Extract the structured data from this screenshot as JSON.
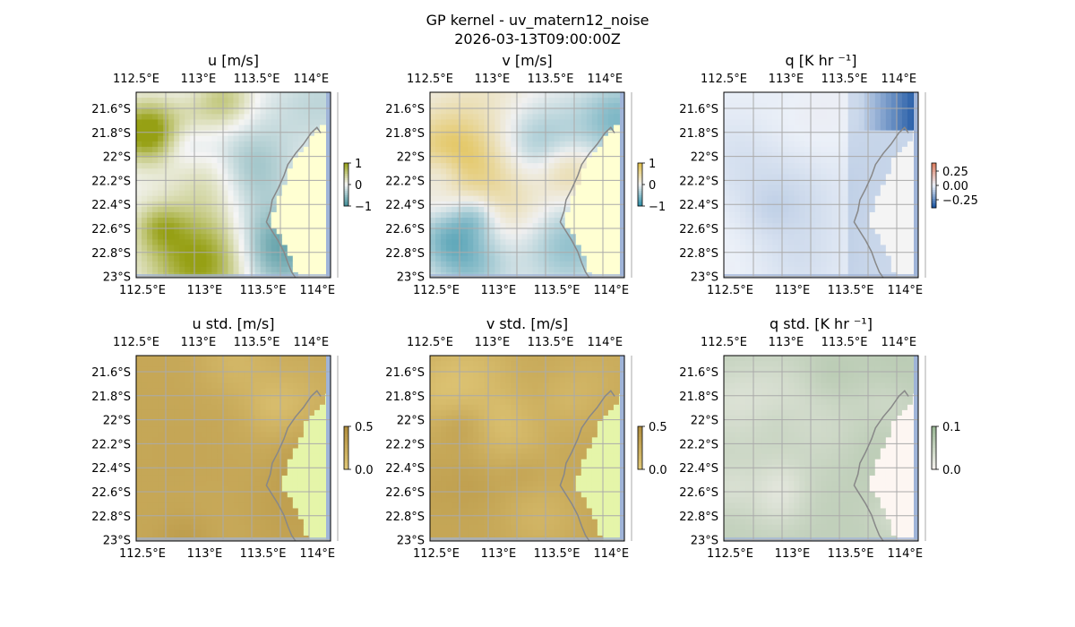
{
  "figure": {
    "title_line1": "GP kernel - uv_matern12_noise",
    "title_line2": "2026-03-13T09:00:00Z"
  },
  "colors": {
    "ocean": "#9fb4d8",
    "land_light": "#ffffd2",
    "land_std": "#e5f5a9",
    "land_q": "#f4f4f4",
    "land_qstd": "#fdf6f2",
    "coast": "#888888",
    "grid": "#aaaaaa"
  },
  "chart_data": [
    {
      "type": "heatmap",
      "title": "u [m/s]",
      "colormap": "diverging-brown-green",
      "x_ticks": [
        "112.5°E",
        "113°E",
        "113.5°E",
        "114°E"
      ],
      "y_ticks": [
        "21.6°S",
        "21.8°S",
        "22°S",
        "22.2°S",
        "22.4°S",
        "22.6°S",
        "22.8°S",
        "23°S"
      ],
      "lon_range": [
        112.5,
        114.2
      ],
      "lat_range": [
        -23.0,
        -21.5
      ],
      "colorbar_ticks": [
        "1",
        "0",
        "−1"
      ],
      "colorbar_range": [
        -1,
        1
      ],
      "grid": true
    },
    {
      "type": "heatmap",
      "title": "v [m/s]",
      "colormap": "diverging-brown-teal",
      "x_ticks": [
        "112.5°E",
        "113°E",
        "113.5°E",
        "114°E"
      ],
      "y_ticks": [
        "21.6°S",
        "21.8°S",
        "22°S",
        "22.2°S",
        "22.4°S",
        "22.6°S",
        "22.8°S",
        "23°S"
      ],
      "lon_range": [
        112.5,
        114.2
      ],
      "lat_range": [
        -23.0,
        -21.5
      ],
      "colorbar_ticks": [
        "1",
        "0",
        "−1"
      ],
      "colorbar_range": [
        -1,
        1
      ],
      "grid": true
    },
    {
      "type": "heatmap",
      "title": "q [K hr ⁻¹]",
      "colormap": "diverging-red-blue",
      "x_ticks": [
        "112.5°E",
        "113°E",
        "113.5°E",
        "114°E"
      ],
      "y_ticks": [
        "21.6°S",
        "21.8°S",
        "22°S",
        "22.2°S",
        "22.4°S",
        "22.6°S",
        "22.8°S",
        "23°S"
      ],
      "lon_range": [
        112.5,
        114.2
      ],
      "lat_range": [
        -23.0,
        -21.5
      ],
      "colorbar_ticks": [
        "0.25",
        "0.00",
        "−0.25"
      ],
      "colorbar_range": [
        -0.35,
        0.35
      ],
      "grid": true
    },
    {
      "type": "heatmap",
      "title": "u std. [m/s]",
      "colormap": "sequential-brown",
      "x_ticks": [
        "112.5°E",
        "113°E",
        "113.5°E",
        "114°E"
      ],
      "y_ticks": [
        "21.6°S",
        "21.8°S",
        "22°S",
        "22.2°S",
        "22.4°S",
        "22.6°S",
        "22.8°S",
        "23°S"
      ],
      "lon_range": [
        112.5,
        114.2
      ],
      "lat_range": [
        -23.0,
        -21.5
      ],
      "colorbar_ticks": [
        "0.5",
        "0.0"
      ],
      "colorbar_range": [
        0,
        0.5
      ],
      "grid": true
    },
    {
      "type": "heatmap",
      "title": "v std. [m/s]",
      "colormap": "sequential-brown",
      "x_ticks": [
        "112.5°E",
        "113°E",
        "113.5°E",
        "114°E"
      ],
      "y_ticks": [
        "21.6°S",
        "21.8°S",
        "22°S",
        "22.2°S",
        "22.4°S",
        "22.6°S",
        "22.8°S",
        "23°S"
      ],
      "lon_range": [
        112.5,
        114.2
      ],
      "lat_range": [
        -23.0,
        -21.5
      ],
      "colorbar_ticks": [
        "0.5",
        "0.0"
      ],
      "colorbar_range": [
        0,
        0.5
      ],
      "grid": true
    },
    {
      "type": "heatmap",
      "title": "q std. [K hr ⁻¹]",
      "colormap": "sequential-green",
      "x_ticks": [
        "112.5°E",
        "113°E",
        "113.5°E",
        "114°E"
      ],
      "y_ticks": [
        "21.6°S",
        "21.8°S",
        "22°S",
        "22.2°S",
        "22.4°S",
        "22.6°S",
        "22.8°S",
        "23°S"
      ],
      "lon_range": [
        112.5,
        114.2
      ],
      "lat_range": [
        -23.0,
        -21.5
      ],
      "colorbar_ticks": [
        "0.1",
        "0.0"
      ],
      "colorbar_range": [
        0,
        0.1
      ],
      "grid": true
    }
  ]
}
